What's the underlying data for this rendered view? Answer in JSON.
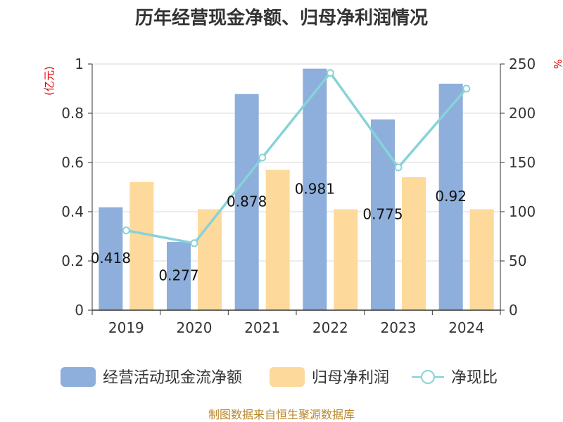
{
  "chart_data": {
    "type": "bar",
    "title": "历年经营现金净额、归母净利润情况",
    "categories": [
      "2019",
      "2020",
      "2021",
      "2022",
      "2023",
      "2024"
    ],
    "series": [
      {
        "name": "经营活动现金流净额",
        "kind": "bar",
        "axis": "left",
        "color": "#8eaedb",
        "values": [
          0.418,
          0.277,
          0.878,
          0.981,
          0.775,
          0.92
        ],
        "labels": [
          "0.418",
          "0.277",
          "0.878",
          "0.981",
          "0.775",
          "0.92"
        ]
      },
      {
        "name": "归母净利润",
        "kind": "bar",
        "axis": "left",
        "color": "#fdd99b",
        "values": [
          0.52,
          0.41,
          0.57,
          0.41,
          0.54,
          0.41
        ]
      },
      {
        "name": "净现比",
        "kind": "line",
        "axis": "right",
        "color": "#86d3d8",
        "values": [
          81,
          68,
          155,
          241,
          145,
          225
        ]
      }
    ],
    "y_left": {
      "unit": "(亿元)",
      "ylim": [
        0,
        1
      ],
      "ticks": [
        "0",
        "0.2",
        "0.4",
        "0.6",
        "0.8",
        "1"
      ]
    },
    "y_right": {
      "unit": "%",
      "ylim": [
        0,
        250
      ],
      "ticks": [
        "0",
        "50",
        "100",
        "150",
        "200",
        "250"
      ]
    },
    "grid": true,
    "legend_position": "bottom"
  },
  "source_text": "制图数据来自恒生聚源数据库"
}
